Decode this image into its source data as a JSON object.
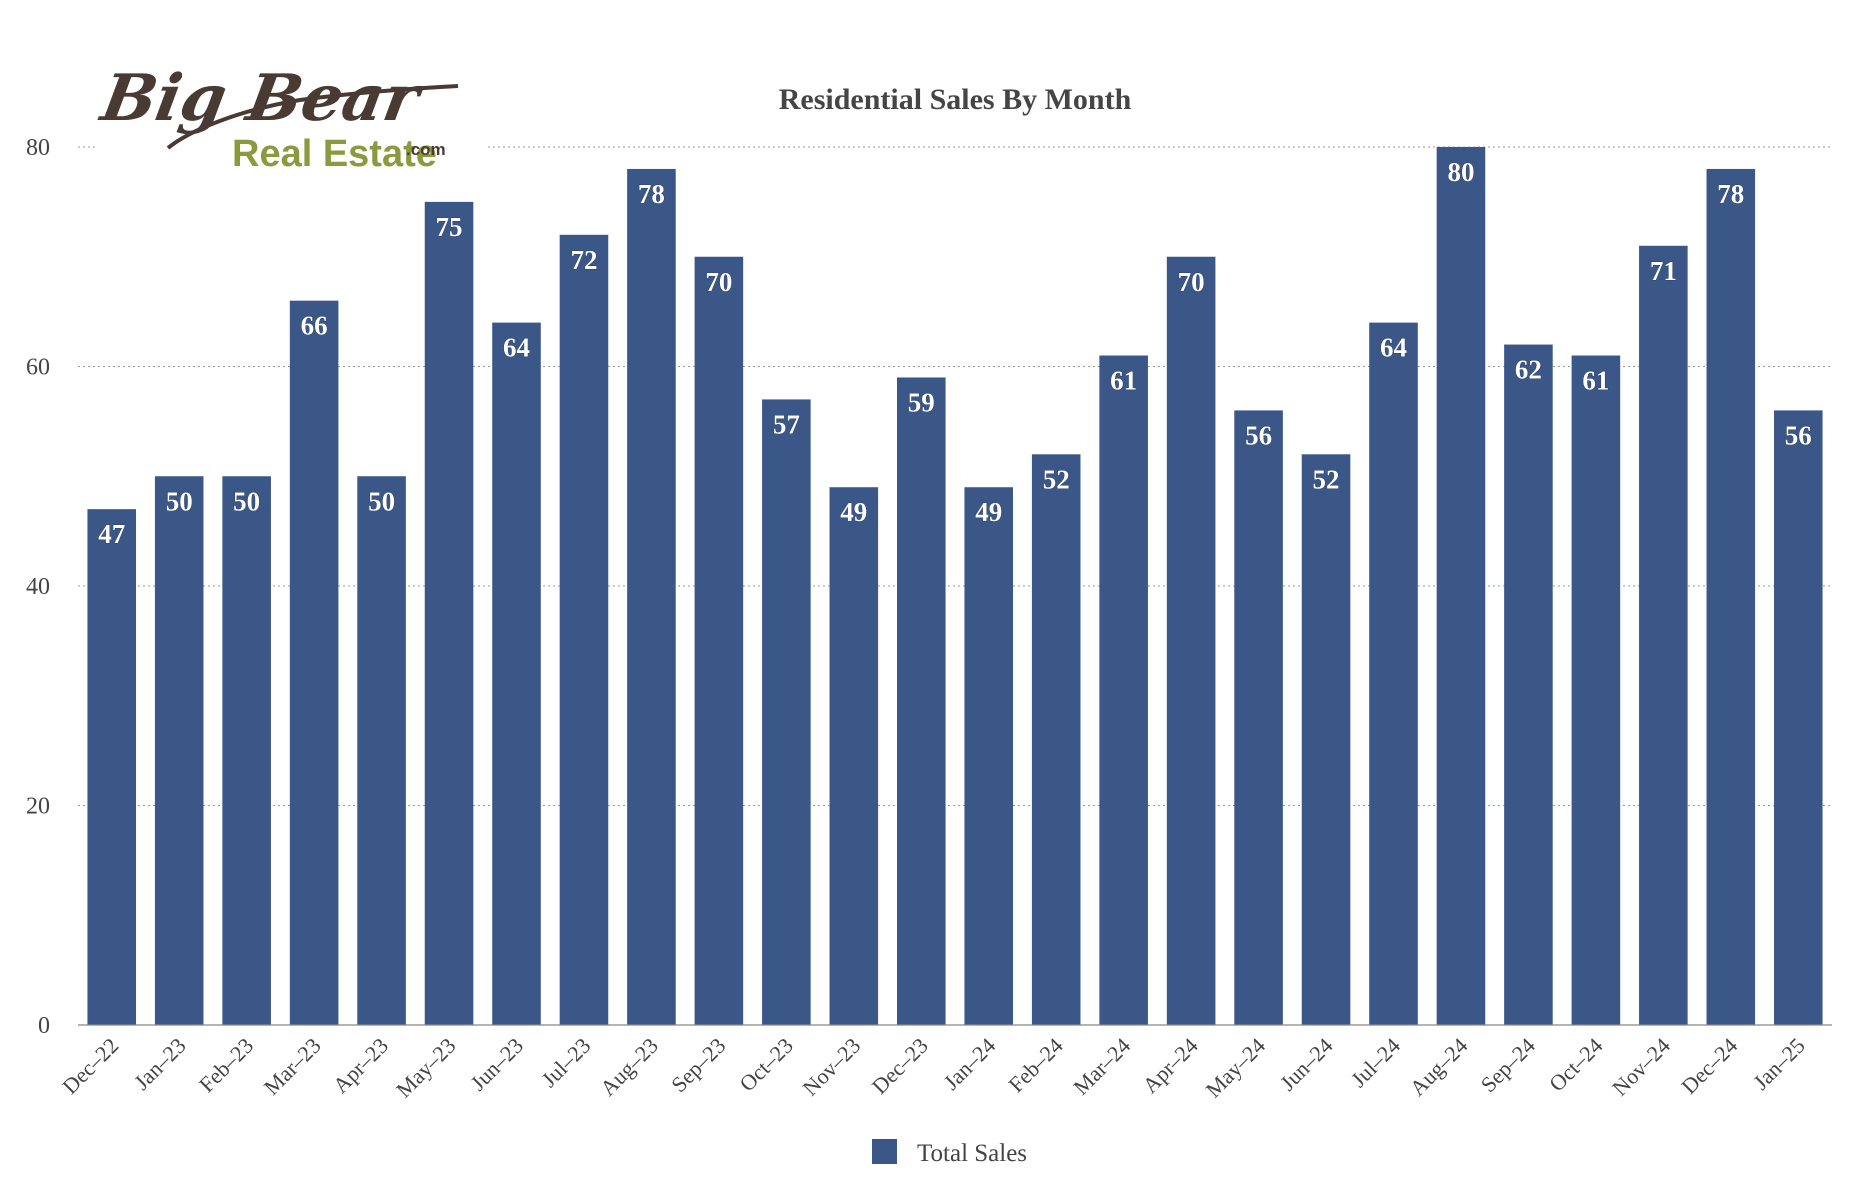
{
  "logo": {
    "line1": "Big Bear",
    "line2": "Real Estate",
    "suffix": ".com",
    "brown": "#4a3a34",
    "green": "#8a9a3e"
  },
  "chart_data": {
    "type": "bar",
    "title": "Residential Sales By Month",
    "xlabel": "",
    "ylabel": "",
    "ylim": [
      0,
      80
    ],
    "yticks": [
      0,
      20,
      40,
      60,
      80
    ],
    "grid": true,
    "legend_position": "bottom",
    "categories": [
      "Dec–22",
      "Jan–23",
      "Feb–23",
      "Mar–23",
      "Apr–23",
      "May–23",
      "Jun–23",
      "Jul–23",
      "Aug–23",
      "Sep–23",
      "Oct–23",
      "Nov–23",
      "Dec–23",
      "Jan–24",
      "Feb–24",
      "Mar–24",
      "Apr–24",
      "May–24",
      "Jun–24",
      "Jul–24",
      "Aug–24",
      "Sep–24",
      "Oct–24",
      "Nov–24",
      "Dec–24",
      "Jan–25"
    ],
    "series": [
      {
        "name": "Total Sales",
        "color": "#3a5788",
        "values": [
          47,
          50,
          50,
          66,
          50,
          75,
          64,
          72,
          78,
          70,
          57,
          49,
          59,
          49,
          52,
          61,
          70,
          56,
          52,
          64,
          80,
          62,
          61,
          71,
          78,
          56
        ]
      }
    ]
  }
}
